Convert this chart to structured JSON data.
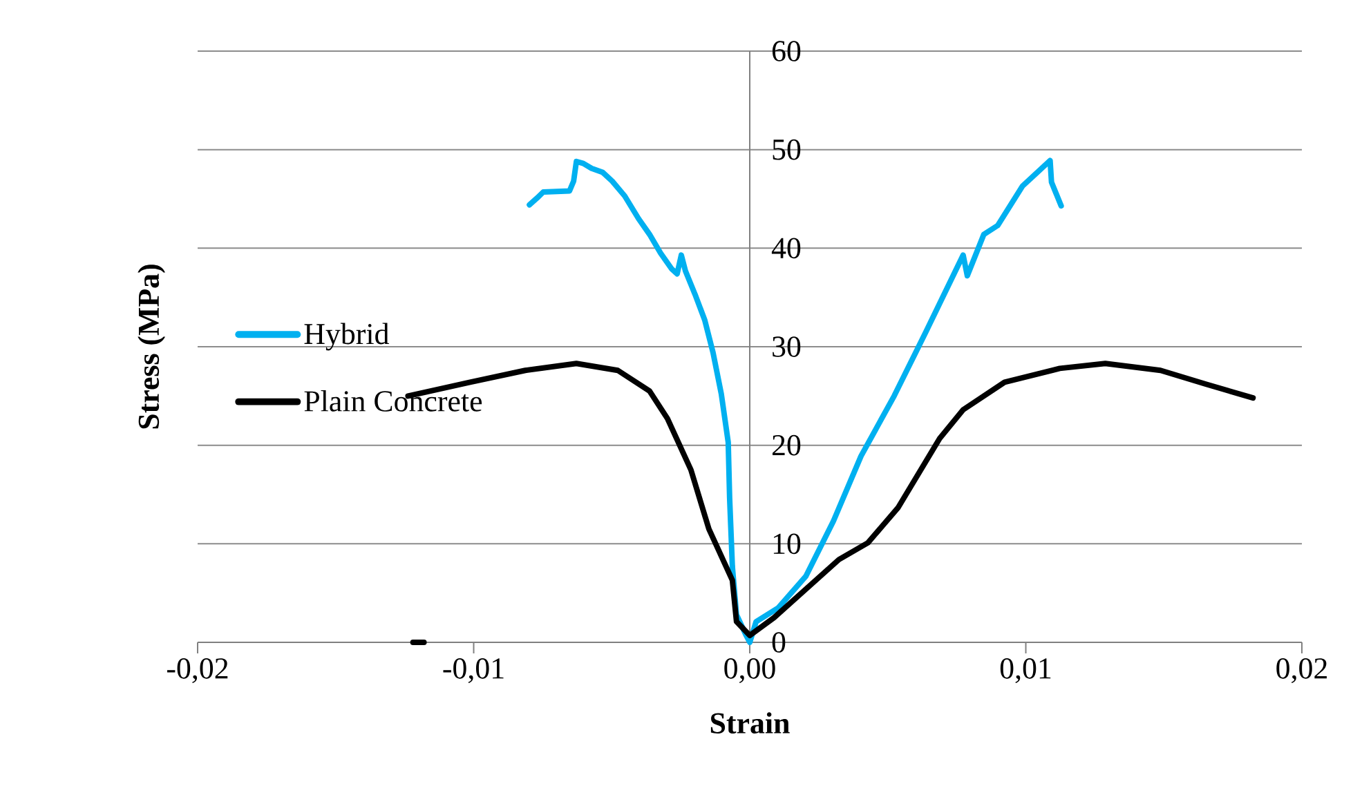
{
  "chart_data": {
    "type": "line",
    "xlabel": "Strain",
    "ylabel": "Stress (MPa)",
    "xlim": [
      -0.02,
      0.02
    ],
    "xticks": [
      {
        "value": -0.02,
        "label": "-0,02"
      },
      {
        "value": -0.01,
        "label": "-0,01"
      },
      {
        "value": 0,
        "label": "0,00"
      },
      {
        "value": 0.01,
        "label": "0,01"
      },
      {
        "value": 0.02,
        "label": "0,02"
      }
    ],
    "ylim": [
      0,
      60
    ],
    "yticks": [
      0,
      10,
      20,
      30,
      40,
      50,
      60
    ],
    "grid": "y",
    "legend": "left",
    "marker": "none",
    "line_style": "solid",
    "series": [
      {
        "name": "Hybrid",
        "color": "#00b0f0",
        "x": [
          -0.00798,
          -0.0077,
          -0.00748,
          -0.00653,
          -0.00638,
          -0.00628,
          -0.00603,
          -0.00573,
          -0.00533,
          -0.00498,
          -0.00453,
          -0.00403,
          -0.00363,
          -0.00323,
          -0.00283,
          -0.00263,
          -0.00248,
          -0.00233,
          -0.00198,
          -0.00163,
          -0.00133,
          -0.00103,
          -0.00078,
          -0.00073,
          -0.00063,
          -0.00048,
          -0.00013,
          0,
          0.00023,
          0.00103,
          0.00203,
          0.00303,
          0.00403,
          0.00523,
          0.00638,
          0.00773,
          0.00788,
          0.00848,
          0.00898,
          0.00988,
          0.01088,
          0.01093,
          0.01128
        ],
        "values": [
          44.4,
          45.1,
          45.7,
          45.8,
          46.8,
          48.8,
          48.6,
          48.1,
          47.7,
          46.8,
          45.3,
          43.0,
          41.4,
          39.5,
          37.9,
          37.4,
          39.3,
          37.7,
          35.3,
          32.7,
          29.4,
          25.2,
          20.3,
          14.7,
          7.7,
          2.8,
          0.7,
          0,
          2.1,
          3.5,
          6.7,
          12.3,
          18.9,
          25.0,
          31.5,
          39.3,
          37.2,
          41.4,
          42.3,
          46.3,
          48.9,
          46.7,
          44.3
        ]
      },
      {
        "name": "Plain Concrete",
        "color": "#000000",
        "x": [
          -0.0122,
          -0.0118,
          -0.012,
          -0.01238,
          -0.01013,
          -0.00813,
          -0.00628,
          -0.00478,
          -0.00363,
          -0.00298,
          -0.00213,
          -0.00148,
          -0.00063,
          -0.00048,
          0,
          0.00088,
          0.00323,
          0.00428,
          0.00538,
          0.00688,
          0.00773,
          0.00923,
          0.01123,
          0.01288,
          0.01488,
          0.01653,
          0.01823
        ],
        "values": [
          0,
          0,
          null,
          25.0,
          26.4,
          27.6,
          28.3,
          27.6,
          25.5,
          22.7,
          17.5,
          11.5,
          6.3,
          2.1,
          0.7,
          2.5,
          8.4,
          10.1,
          13.7,
          20.7,
          23.6,
          26.4,
          27.8,
          28.3,
          27.6,
          26.2,
          24.8
        ]
      }
    ]
  }
}
